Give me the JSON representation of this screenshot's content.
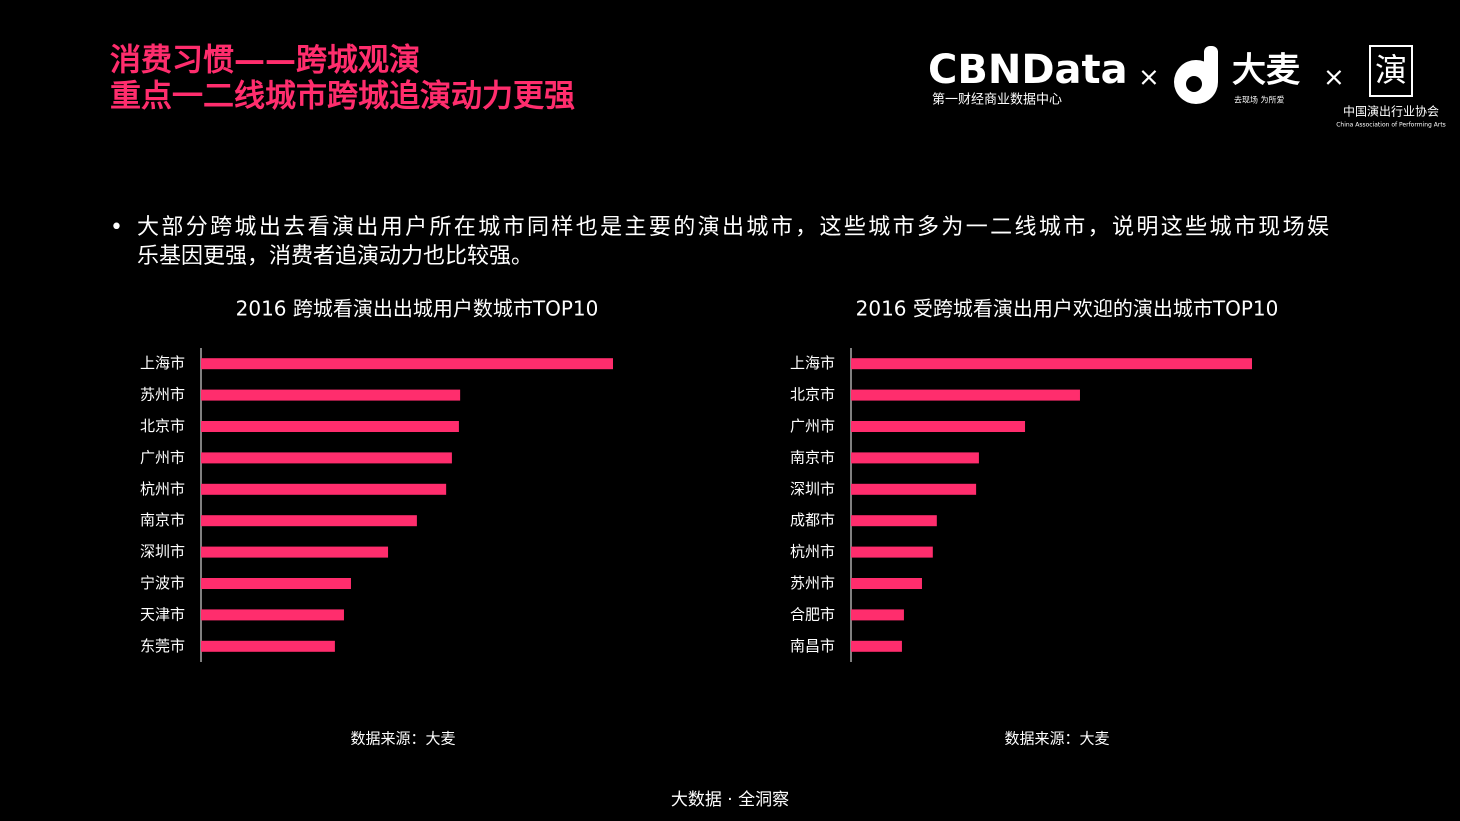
{
  "header": {
    "title_lines": [
      "消费习惯——跨城观演",
      "重点一二线城市跨城追演动力更强"
    ],
    "logos": {
      "cbn": "CBNData",
      "cbn_sub": "第一财经商业数据中心",
      "times": "×",
      "damai": "大麦",
      "damai_sub": "去现场 为所爱",
      "seal": "演",
      "assoc": "中国演出行业协会",
      "assoc_en": "China Association of Performing Arts"
    }
  },
  "bullet": {
    "marker": "•",
    "lines": [
      "大部分跨城出去看演出用户所在城市同样也是主要的演出城市，这些城市多为一二线城市，说明这些城市现场娱",
      "乐基因更强，消费者追演动力也比较强。"
    ]
  },
  "chart_data": [
    {
      "type": "bar",
      "orientation": "horizontal",
      "title": "2016 跨城看演出出城用户数城市TOP10",
      "categories": [
        "上海市",
        "苏州市",
        "北京市",
        "广州市",
        "杭州市",
        "南京市",
        "深圳市",
        "宁波市",
        "天津市",
        "东莞市"
      ],
      "values": [
        100,
        62.9,
        62.6,
        60.9,
        59.5,
        52.4,
        45.4,
        36.4,
        34.7,
        32.5
      ],
      "color": "#ff2d6d",
      "xlim": [
        0,
        100
      ],
      "source": "数据来源：大麦"
    },
    {
      "type": "bar",
      "orientation": "horizontal",
      "title": "2016 受跨城看演出用户欢迎的演出城市TOP10",
      "categories": [
        "上海市",
        "北京市",
        "广州市",
        "南京市",
        "深圳市",
        "成都市",
        "杭州市",
        "苏州市",
        "合肥市",
        "南昌市"
      ],
      "values": [
        100,
        57.1,
        43.4,
        31.9,
        31.2,
        21.4,
        20.4,
        17.7,
        13.2,
        12.7
      ],
      "color": "#ff2d6d",
      "xlim": [
        0,
        100
      ],
      "source": "数据来源：大麦"
    }
  ],
  "footer": "大数据 · 全洞察"
}
